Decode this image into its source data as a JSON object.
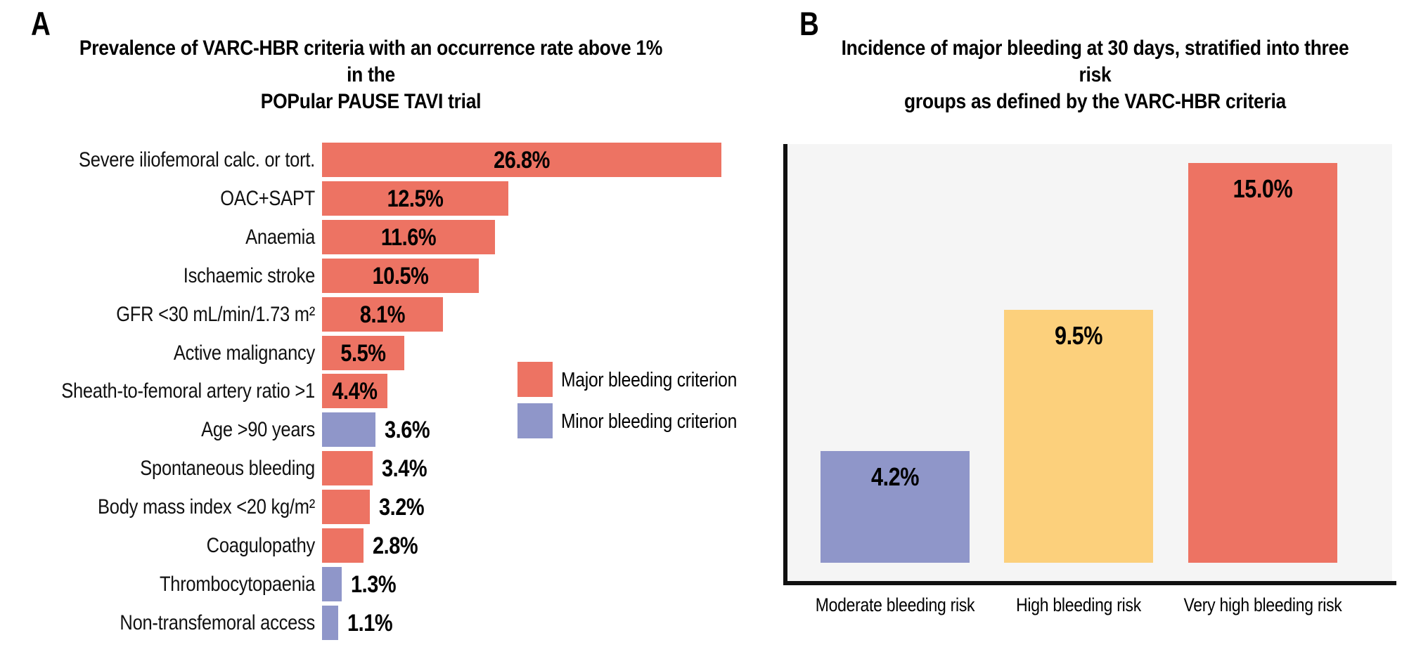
{
  "colors": {
    "major_criterion": "#ED7363",
    "minor_criterion": "#8F96C9",
    "high_risk_yellow": "#FCD07C",
    "plot_background": "#F5F5F5",
    "axis_line": "#111111",
    "text": "#000000"
  },
  "panel_a": {
    "panel_label": "A",
    "title_line1": "Prevalence of VARC-HBR criteria with an occurrence rate above 1% in the",
    "title_line2": "POPular PAUSE TAVI trial",
    "legend": [
      {
        "label": "Major bleeding criterion",
        "type": "major",
        "color": "#ED7363"
      },
      {
        "label": "Minor bleeding criterion",
        "type": "minor",
        "color": "#8F96C9"
      }
    ]
  },
  "panel_b": {
    "panel_label": "B",
    "title_line1": "Incidence of major bleeding at 30 days, stratified into three risk",
    "title_line2": "groups as defined by the VARC-HBR criteria"
  },
  "chart_data": [
    {
      "type": "bar",
      "orientation": "horizontal",
      "title": "Prevalence of VARC-HBR criteria with an occurrence rate above 1% in the POPular PAUSE TAVI trial",
      "unit": "%",
      "xlim": [
        0,
        27
      ],
      "grid": false,
      "legend_position": "right-middle",
      "categories": [
        "Severe iliofemoral calc. or tort.",
        "OAC+SAPT",
        "Anaemia",
        "Ischaemic stroke",
        "GFR <30 mL/min/1.73 m²",
        "Active malignancy",
        "Sheath-to-femoral artery ratio >1",
        "Age >90 years",
        "Spontaneous bleeding",
        "Body mass index <20 kg/m²",
        "Coagulopathy",
        "Thrombocytopaenia",
        "Non-transfemoral access"
      ],
      "values": [
        26.8,
        12.5,
        11.6,
        10.5,
        8.1,
        5.5,
        4.4,
        3.6,
        3.4,
        3.2,
        2.8,
        1.3,
        1.1
      ],
      "criterion_type": [
        "major",
        "major",
        "major",
        "major",
        "major",
        "major",
        "major",
        "minor",
        "major",
        "major",
        "major",
        "minor",
        "minor"
      ],
      "legend_entries": [
        "Major bleeding criterion",
        "Minor bleeding criterion"
      ]
    },
    {
      "type": "bar",
      "orientation": "vertical",
      "title": "Incidence of major bleeding at 30 days, stratified into three risk groups as defined by the VARC-HBR criteria",
      "unit": "%",
      "ylim": [
        0,
        16
      ],
      "grid": false,
      "categories": [
        "Moderate bleeding risk",
        "High bleeding risk",
        "Very high bleeding risk"
      ],
      "values": [
        4.2,
        9.5,
        15.0
      ],
      "bar_colors": [
        "#8F96C9",
        "#FCD07C",
        "#ED7363"
      ]
    }
  ]
}
